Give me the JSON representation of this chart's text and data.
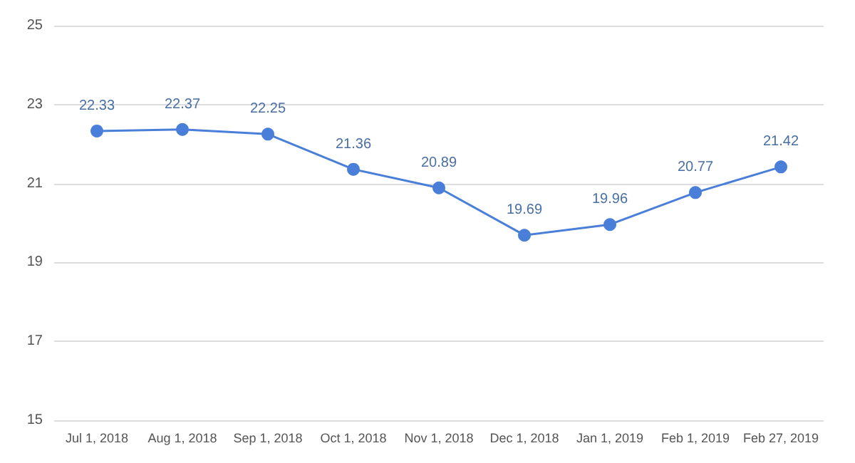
{
  "chart_data": {
    "type": "line",
    "categories": [
      "Jul 1, 2018",
      "Aug 1, 2018",
      "Sep 1, 2018",
      "Oct 1, 2018",
      "Nov 1, 2018",
      "Dec 1, 2018",
      "Jan 1, 2019",
      "Feb 1, 2019",
      "Feb 27, 2019"
    ],
    "series": [
      {
        "color": "#4a7fd9",
        "values": [
          22.33,
          22.37,
          22.25,
          21.36,
          20.89,
          19.69,
          19.96,
          20.77,
          21.42
        ]
      }
    ],
    "ylim": [
      15,
      25
    ],
    "yticks": [
      15,
      17,
      19,
      21,
      23,
      25
    ],
    "grid": "y",
    "marker": "circle",
    "line_style": "solid",
    "data_labels": true
  }
}
